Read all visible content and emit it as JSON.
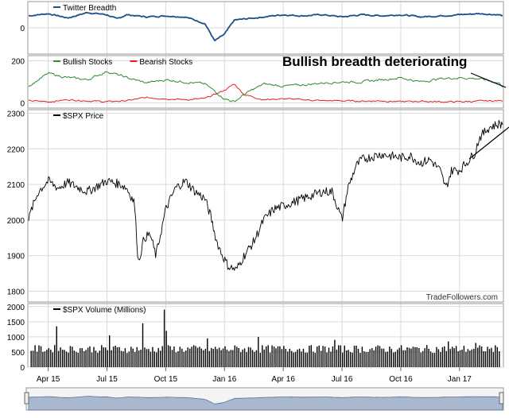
{
  "annotation": "Bullish breadth deteriorating",
  "watermark": "TradeFollowers.com",
  "colors": {
    "twitter": "#1f4e8c",
    "bullish": "#2e8b2e",
    "bearish": "#e02020",
    "price": "#000000",
    "volume": "#000000",
    "navigator_fill": "#aab8cf",
    "navigator_line": "#5a6f94",
    "grid": "#d9d9d9"
  },
  "chart_data": [
    {
      "type": "line",
      "panel": "twitter",
      "legend": [
        {
          "name": "Twitter Breadth",
          "color": "#1f4e8c"
        }
      ],
      "yticks": [
        0
      ],
      "ylim": [
        -1.2,
        1.2
      ],
      "x_anchor_months": [
        0,
        1,
        2,
        3,
        4,
        4.5,
        5,
        6,
        7,
        8,
        9,
        9.5,
        10,
        10.5,
        11,
        12,
        13,
        14,
        15,
        16,
        17,
        18,
        19,
        20,
        21,
        22,
        23,
        24,
        24.2
      ],
      "series": [
        {
          "name": "Twitter Breadth",
          "values": [
            0.55,
            0.65,
            0.45,
            0.7,
            0.6,
            0.4,
            0.6,
            0.5,
            0.55,
            0.5,
            0.2,
            -0.6,
            -0.3,
            0.35,
            0.4,
            0.5,
            0.6,
            0.55,
            0.6,
            0.5,
            0.6,
            0.55,
            0.6,
            0.5,
            0.55,
            0.6,
            0.65,
            0.6,
            0.55
          ]
        }
      ]
    },
    {
      "type": "line",
      "panel": "breadth",
      "legend": [
        {
          "name": "Bullish Stocks",
          "color": "#2e8b2e"
        },
        {
          "name": "Bearish Stocks",
          "color": "#e02020"
        }
      ],
      "yticks": [
        0,
        200
      ],
      "ylim": [
        -25,
        225
      ],
      "x_anchor_months": [
        0,
        1,
        2,
        3,
        4,
        5,
        6,
        7,
        8,
        9,
        10,
        10.5,
        11,
        12,
        13,
        14,
        15,
        16,
        17,
        18,
        19,
        20,
        21,
        22,
        23,
        24,
        24.2
      ],
      "series": [
        {
          "name": "Bullish Stocks",
          "values": [
            80,
            140,
            120,
            110,
            150,
            120,
            95,
            110,
            100,
            90,
            20,
            5,
            40,
            90,
            80,
            85,
            95,
            100,
            100,
            110,
            120,
            100,
            115,
            120,
            115,
            95,
            80
          ]
        },
        {
          "name": "Bearish Stocks",
          "values": [
            10,
            5,
            15,
            10,
            5,
            10,
            25,
            20,
            15,
            20,
            60,
            90,
            40,
            15,
            20,
            15,
            10,
            10,
            8,
            10,
            5,
            8,
            5,
            5,
            8,
            10,
            10
          ]
        }
      ]
    },
    {
      "type": "line",
      "panel": "price",
      "legend": [
        {
          "name": "$SPX Price",
          "color": "#000000"
        }
      ],
      "yticks": [
        1800,
        1900,
        2000,
        2100,
        2200,
        2300
      ],
      "ylim": [
        1770,
        2310
      ],
      "x_anchor_months": [
        0,
        0.15,
        0.5,
        1,
        1.5,
        2,
        3,
        4,
        4.7,
        5,
        5.4,
        5.6,
        5.9,
        6.2,
        6.5,
        7,
        7.5,
        8,
        8.5,
        9,
        9.3,
        9.6,
        9.9,
        10.2,
        10.6,
        11,
        11.5,
        12,
        12.5,
        13,
        14,
        15,
        15.5,
        16,
        16.3,
        16.7,
        17,
        18,
        19,
        19.5,
        20,
        20.5,
        21,
        21.3,
        21.6,
        22,
        22.5,
        22.8,
        23,
        23.5,
        24,
        24.2
      ],
      "series": [
        {
          "name": "$SPX Price",
          "values": [
            2000,
            2030,
            2080,
            2110,
            2090,
            2105,
            2080,
            2110,
            2100,
            2090,
            2050,
            1880,
            1950,
            1960,
            1900,
            2030,
            2090,
            2110,
            2080,
            2060,
            2010,
            1940,
            1900,
            1870,
            1860,
            1900,
            1940,
            2000,
            2030,
            2040,
            2060,
            2080,
            2080,
            2000,
            2090,
            2150,
            2170,
            2185,
            2175,
            2180,
            2160,
            2170,
            2140,
            2090,
            2140,
            2140,
            2170,
            2190,
            2230,
            2260,
            2270,
            2270
          ]
        }
      ]
    },
    {
      "type": "bar",
      "panel": "volume",
      "legend": [
        {
          "name": "$SPX Volume (Millions)",
          "color": "#000000"
        }
      ],
      "yticks": [
        0,
        500,
        1000,
        1500,
        2000
      ],
      "ylim": [
        0,
        2100
      ],
      "base_level": 600,
      "spikes": [
        {
          "month": 1.4,
          "value": 1350
        },
        {
          "month": 4.1,
          "value": 1050
        },
        {
          "month": 5.8,
          "value": 1450
        },
        {
          "month": 6.9,
          "value": 1900
        },
        {
          "month": 6.95,
          "value": 1200
        },
        {
          "month": 9.1,
          "value": 950
        },
        {
          "month": 11.7,
          "value": 1000
        },
        {
          "month": 15.6,
          "value": 900
        },
        {
          "month": 21.4,
          "value": 850
        },
        {
          "month": 22.8,
          "value": 800
        }
      ]
    },
    {
      "type": "area",
      "panel": "navigator",
      "xticks": [
        "Apr 15",
        "Jul 15",
        "Oct 15",
        "Jan 16",
        "Apr 16",
        "Jul 16",
        "Oct 16",
        "Jan 17"
      ],
      "xtick_months": [
        1,
        4,
        7,
        10,
        13,
        16,
        19,
        22
      ]
    }
  ]
}
